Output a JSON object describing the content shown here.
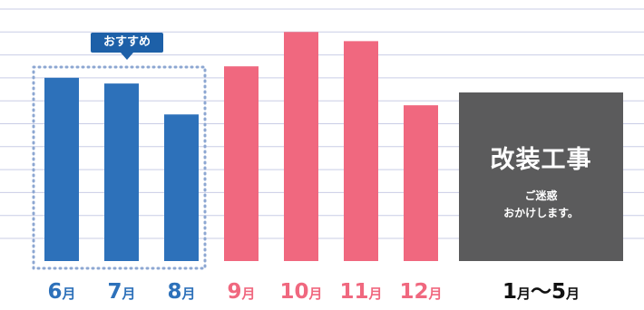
{
  "chart_data": {
    "type": "bar",
    "title": "",
    "xlabel": "",
    "ylabel": "",
    "grid": true,
    "categories": [
      "6",
      "7",
      "8",
      "9",
      "10",
      "11",
      "12"
    ],
    "category_unit": "月",
    "values": [
      8,
      7.75,
      6.4,
      8.5,
      10,
      9.6,
      6.8
    ],
    "ylim": [
      0,
      11
    ],
    "bar_colors": [
      "#2d71ba",
      "#2d71ba",
      "#2d71ba",
      "#f0687f",
      "#f0687f",
      "#f0687f",
      "#f0687f"
    ],
    "highlight": {
      "label": "おすすめ",
      "categories": [
        "6",
        "7",
        "8"
      ],
      "color": "#1d60a8"
    },
    "closed_period": {
      "label_start": "1",
      "label_unit_1": "月",
      "separator": "〜",
      "label_end": "5",
      "label_unit_2": "月",
      "title": "改装工事",
      "note_line1": "ご迷惑",
      "note_line2": "おかけします。",
      "color": "#5b5b5c"
    },
    "label_colors": {
      "summer": "#2d71ba",
      "autumn": "#f0687f",
      "closed": "#111111"
    }
  }
}
